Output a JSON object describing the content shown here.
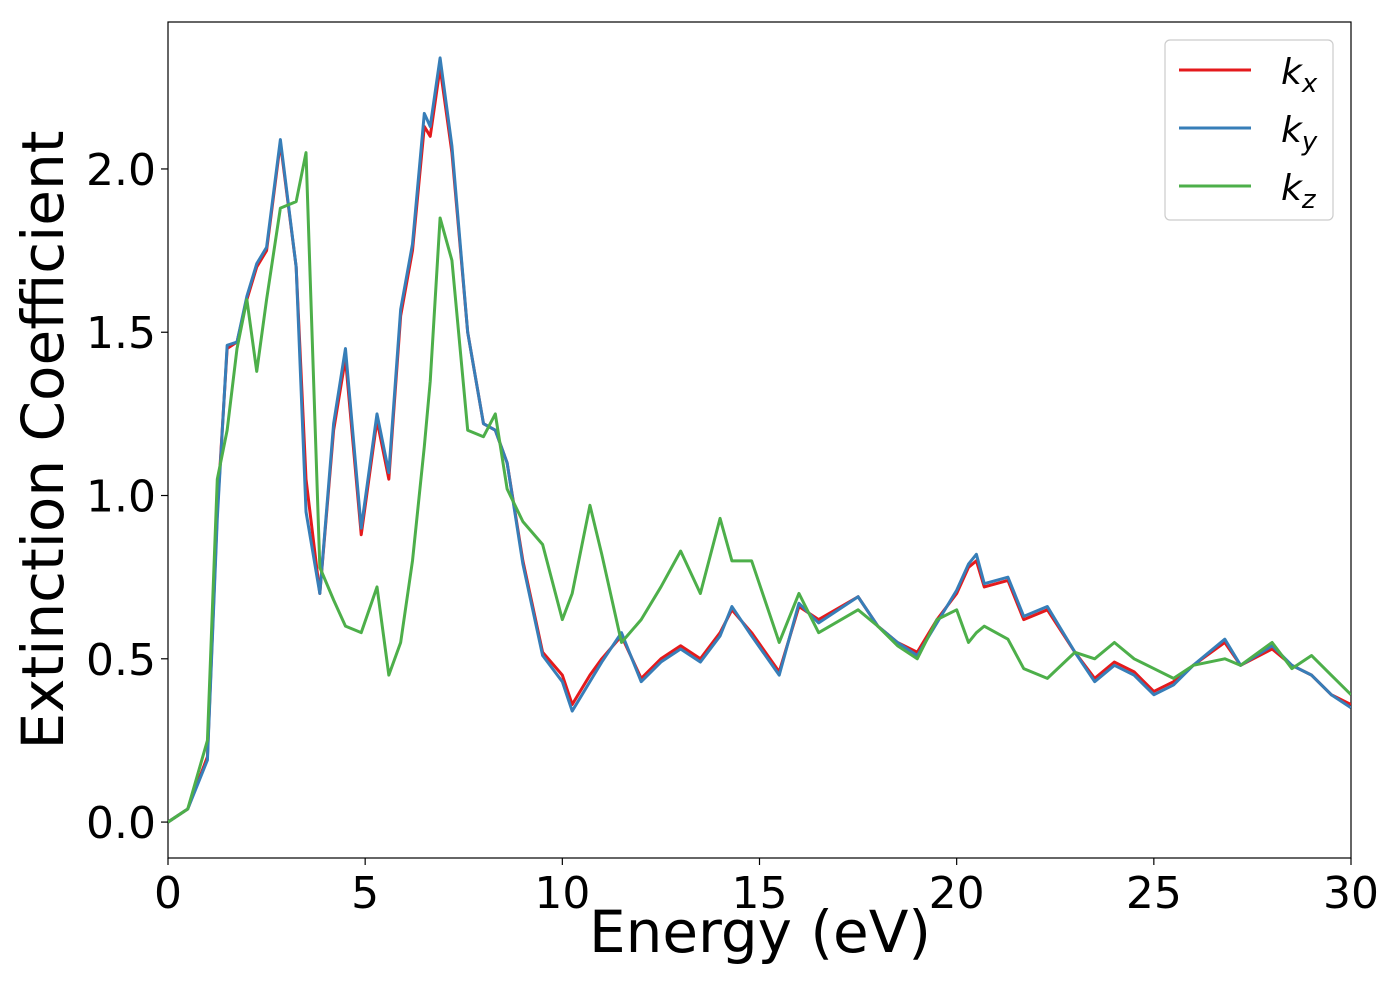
{
  "chart_data": {
    "type": "line",
    "xlabel": "Energy (eV)",
    "ylabel": "Extinction Coefficient",
    "x": [
      0,
      0.5,
      1,
      1.25,
      1.5,
      1.75,
      2,
      2.25,
      2.5,
      2.85,
      3.25,
      3.5,
      3.85,
      4.2,
      4.5,
      4.9,
      5.3,
      5.6,
      5.9,
      6.2,
      6.5,
      6.65,
      6.9,
      7.2,
      7.6,
      8,
      8.3,
      8.6,
      9,
      9.5,
      10,
      10.25,
      10.7,
      11,
      11.5,
      12,
      12.5,
      13,
      13.5,
      14,
      14.3,
      14.8,
      15.5,
      16,
      16.5,
      17.5,
      18,
      18.5,
      19,
      19.5,
      20,
      20.3,
      20.5,
      20.7,
      21.3,
      21.7,
      22.3,
      23,
      23.5,
      24,
      24.5,
      25,
      25.5,
      26,
      26.8,
      27.2,
      28,
      28.5,
      29,
      29.5,
      30
    ],
    "series": [
      {
        "name": "kx",
        "color": "#e41a1c",
        "values": [
          0,
          0.04,
          0.2,
          0.95,
          1.45,
          1.47,
          1.6,
          1.7,
          1.75,
          2.08,
          1.7,
          1.05,
          0.7,
          1.2,
          1.42,
          0.88,
          1.23,
          1.05,
          1.55,
          1.75,
          2.13,
          2.1,
          2.31,
          2.05,
          1.5,
          1.22,
          1.2,
          1.1,
          0.8,
          0.52,
          0.45,
          0.36,
          0.45,
          0.5,
          0.57,
          0.44,
          0.5,
          0.54,
          0.5,
          0.58,
          0.65,
          0.58,
          0.46,
          0.66,
          0.62,
          0.69,
          0.6,
          0.55,
          0.52,
          0.62,
          0.7,
          0.78,
          0.8,
          0.72,
          0.74,
          0.62,
          0.65,
          0.52,
          0.44,
          0.49,
          0.46,
          0.4,
          0.43,
          0.48,
          0.55,
          0.48,
          0.53,
          0.48,
          0.45,
          0.39,
          0.36
        ]
      },
      {
        "name": "ky",
        "color": "#377eb8",
        "values": [
          0,
          0.04,
          0.19,
          0.93,
          1.46,
          1.47,
          1.61,
          1.71,
          1.76,
          2.09,
          1.7,
          0.95,
          0.7,
          1.22,
          1.45,
          0.9,
          1.25,
          1.07,
          1.57,
          1.77,
          2.17,
          2.13,
          2.34,
          2.07,
          1.5,
          1.22,
          1.2,
          1.1,
          0.79,
          0.51,
          0.43,
          0.34,
          0.43,
          0.49,
          0.58,
          0.43,
          0.49,
          0.53,
          0.49,
          0.57,
          0.66,
          0.57,
          0.45,
          0.67,
          0.61,
          0.69,
          0.6,
          0.55,
          0.51,
          0.61,
          0.71,
          0.79,
          0.82,
          0.73,
          0.75,
          0.63,
          0.66,
          0.52,
          0.43,
          0.48,
          0.45,
          0.39,
          0.42,
          0.48,
          0.56,
          0.48,
          0.54,
          0.48,
          0.45,
          0.39,
          0.35
        ]
      },
      {
        "name": "kz",
        "color": "#4daf4a",
        "values": [
          0,
          0.04,
          0.25,
          1.05,
          1.2,
          1.45,
          1.6,
          1.38,
          1.6,
          1.88,
          1.9,
          2.05,
          0.78,
          0.68,
          0.6,
          0.58,
          0.72,
          0.45,
          0.55,
          0.8,
          1.15,
          1.35,
          1.85,
          1.72,
          1.2,
          1.18,
          1.25,
          1.02,
          0.92,
          0.85,
          0.62,
          0.7,
          0.97,
          0.82,
          0.55,
          0.62,
          0.72,
          0.83,
          0.7,
          0.93,
          0.8,
          0.8,
          0.55,
          0.7,
          0.58,
          0.65,
          0.6,
          0.54,
          0.5,
          0.62,
          0.65,
          0.55,
          0.58,
          0.6,
          0.56,
          0.47,
          0.44,
          0.52,
          0.5,
          0.55,
          0.5,
          0.47,
          0.44,
          0.48,
          0.5,
          0.48,
          0.55,
          0.47,
          0.51,
          0.45,
          0.39
        ]
      }
    ],
    "xlim": [
      0,
      30
    ],
    "xticks": [
      0,
      5,
      10,
      15,
      20,
      25,
      30
    ],
    "ylim": [
      -0.11,
      2.45
    ],
    "yticks": [
      {
        "value": 0,
        "label": "0.0"
      },
      {
        "value": 0.5,
        "label": "0.5"
      },
      {
        "value": 1,
        "label": "1.0"
      },
      {
        "value": 1.5,
        "label": "1.5"
      },
      {
        "value": 2,
        "label": "2.0"
      }
    ],
    "legend": "upper right",
    "grid": false
  }
}
